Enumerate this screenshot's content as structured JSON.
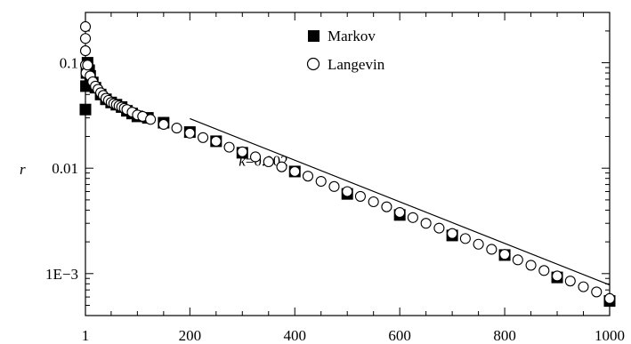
{
  "chart_data": {
    "type": "scatter",
    "ylabel": "r",
    "xlabel": "",
    "x_ticks": [
      1,
      200,
      400,
      600,
      800,
      1000
    ],
    "x_tick_labels": [
      "1",
      "200",
      "400",
      "600",
      "800",
      "1000"
    ],
    "y_ticks": [
      0.001,
      0.01,
      0.1
    ],
    "y_tick_labels": [
      "1E−3",
      "0.01",
      "0.1"
    ],
    "xlim": [
      1,
      1000
    ],
    "ylim": [
      0.0004,
      0.3
    ],
    "y_scale": "log",
    "grid": false,
    "legend_position": "top-center",
    "series": [
      {
        "name": "Markov",
        "marker": "filled-square",
        "color": "#000000",
        "points": [
          [
            1,
            0.036
          ],
          [
            2,
            0.06
          ],
          [
            3,
            0.08
          ],
          [
            5,
            0.1
          ],
          [
            8,
            0.085
          ],
          [
            10,
            0.075
          ],
          [
            15,
            0.065
          ],
          [
            20,
            0.058
          ],
          [
            30,
            0.05
          ],
          [
            40,
            0.045
          ],
          [
            50,
            0.042
          ],
          [
            60,
            0.04
          ],
          [
            70,
            0.038
          ],
          [
            80,
            0.035
          ],
          [
            90,
            0.033
          ],
          [
            100,
            0.031
          ],
          [
            120,
            0.03
          ],
          [
            150,
            0.027
          ],
          [
            200,
            0.022
          ],
          [
            250,
            0.018
          ],
          [
            300,
            0.014
          ],
          [
            400,
            0.0093
          ],
          [
            500,
            0.0057
          ],
          [
            600,
            0.0036
          ],
          [
            700,
            0.0023
          ],
          [
            800,
            0.0015
          ],
          [
            900,
            0.00092
          ],
          [
            1000,
            0.00055
          ]
        ]
      },
      {
        "name": "Langevin",
        "marker": "open-circle",
        "color": "#000000",
        "points": [
          [
            1,
            0.22
          ],
          [
            1,
            0.17
          ],
          [
            1,
            0.13
          ],
          [
            1,
            0.095
          ],
          [
            2,
            0.08
          ],
          [
            5,
            0.095
          ],
          [
            10,
            0.075
          ],
          [
            15,
            0.066
          ],
          [
            20,
            0.06
          ],
          [
            25,
            0.056
          ],
          [
            30,
            0.052
          ],
          [
            35,
            0.049
          ],
          [
            40,
            0.046
          ],
          [
            45,
            0.044
          ],
          [
            50,
            0.042
          ],
          [
            55,
            0.041
          ],
          [
            60,
            0.04
          ],
          [
            65,
            0.039
          ],
          [
            70,
            0.038
          ],
          [
            75,
            0.037
          ],
          [
            80,
            0.036
          ],
          [
            90,
            0.034
          ],
          [
            100,
            0.032
          ],
          [
            110,
            0.031
          ],
          [
            125,
            0.029
          ],
          [
            150,
            0.026
          ],
          [
            175,
            0.024
          ],
          [
            200,
            0.0215
          ],
          [
            225,
            0.0195
          ],
          [
            250,
            0.018
          ],
          [
            275,
            0.0158
          ],
          [
            300,
            0.0143
          ],
          [
            325,
            0.0128
          ],
          [
            350,
            0.0115
          ],
          [
            375,
            0.0103
          ],
          [
            400,
            0.0093
          ],
          [
            425,
            0.0084
          ],
          [
            450,
            0.0075
          ],
          [
            475,
            0.0067
          ],
          [
            500,
            0.006
          ],
          [
            525,
            0.0054
          ],
          [
            550,
            0.0048
          ],
          [
            575,
            0.0043
          ],
          [
            600,
            0.0038
          ],
          [
            625,
            0.0034
          ],
          [
            650,
            0.003
          ],
          [
            675,
            0.0027
          ],
          [
            700,
            0.0024
          ],
          [
            725,
            0.00215
          ],
          [
            750,
            0.0019
          ],
          [
            775,
            0.0017
          ],
          [
            800,
            0.00152
          ],
          [
            825,
            0.00135
          ],
          [
            850,
            0.0012
          ],
          [
            875,
            0.00107
          ],
          [
            900,
            0.00095
          ],
          [
            925,
            0.00085
          ],
          [
            950,
            0.00075
          ],
          [
            975,
            0.00067
          ],
          [
            1000,
            0.00058
          ]
        ]
      }
    ],
    "reference_line": {
      "x": [
        200,
        1000
      ],
      "y": [
        0.0295,
        0.00078
      ],
      "label_prefix": "k",
      "label_value": "=0.002",
      "label_anchor": [
        500,
        0.0105
      ]
    }
  }
}
